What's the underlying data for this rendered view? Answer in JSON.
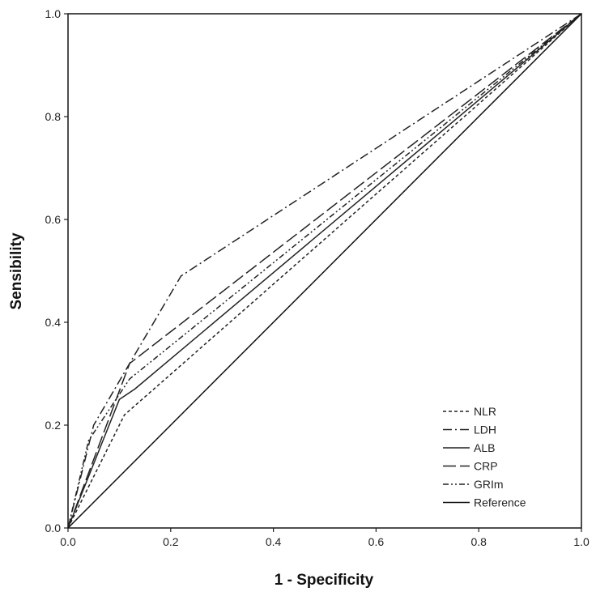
{
  "chart_data": {
    "type": "line",
    "title": "",
    "xlabel": "1 - Specificity",
    "ylabel": "Sensibility",
    "xlim": [
      0,
      1
    ],
    "ylim": [
      0,
      1
    ],
    "x_ticks": [
      "0.0",
      "0.2",
      "0.4",
      "0.6",
      "0.8",
      "1.0"
    ],
    "y_ticks": [
      "0.0",
      "0.2",
      "0.4",
      "0.6",
      "0.8",
      "1.0"
    ],
    "grid": false,
    "legend_position": "bottom-right",
    "series": [
      {
        "name": "NLR",
        "dash": "short-dash",
        "color": "#222222",
        "points": [
          [
            0,
            0
          ],
          [
            0.11,
            0.22
          ],
          [
            1,
            1
          ]
        ]
      },
      {
        "name": "LDH",
        "dash": "dash-dot",
        "color": "#222222",
        "points": [
          [
            0,
            0
          ],
          [
            0.05,
            0.2
          ],
          [
            0.12,
            0.32
          ],
          [
            0.22,
            0.49
          ],
          [
            1,
            1
          ]
        ]
      },
      {
        "name": "ALB",
        "dash": "solid",
        "color": "#222222",
        "points": [
          [
            0,
            0
          ],
          [
            0.1,
            0.25
          ],
          [
            0.13,
            0.27
          ],
          [
            1,
            1
          ]
        ]
      },
      {
        "name": "CRP",
        "dash": "long-dash",
        "color": "#222222",
        "points": [
          [
            0,
            0
          ],
          [
            0.12,
            0.32
          ],
          [
            1,
            1
          ]
        ]
      },
      {
        "name": "GRIm",
        "dash": "dash-dot-dot",
        "color": "#222222",
        "points": [
          [
            0,
            0
          ],
          [
            0.04,
            0.17
          ],
          [
            0.12,
            0.29
          ],
          [
            1,
            1
          ]
        ]
      },
      {
        "name": "Reference",
        "dash": "solid",
        "color": "#111111",
        "points": [
          [
            0,
            0
          ],
          [
            1,
            1
          ]
        ]
      }
    ]
  }
}
